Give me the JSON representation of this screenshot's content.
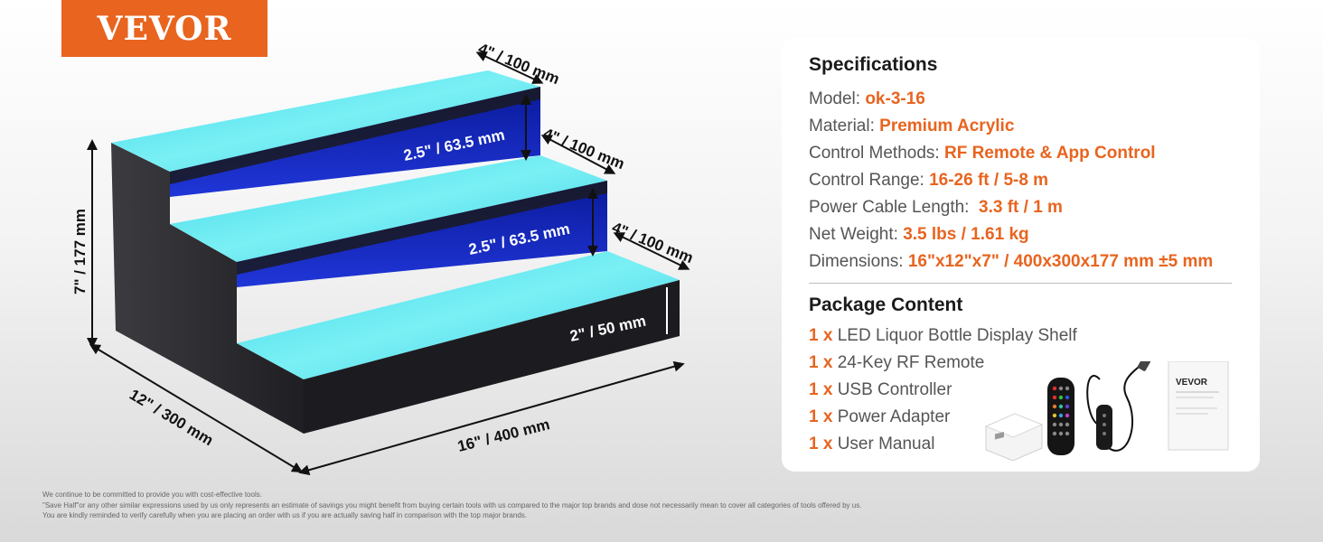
{
  "brand": {
    "logo_text": "VEVOR",
    "color": "#e8641f"
  },
  "dimensions": {
    "step_depth_top": "4\" / 100 mm",
    "step_depth_mid": "4\" / 100 mm",
    "step_depth_bottom": "4\" / 100 mm",
    "rise_top": "2.5\" / 63.5 mm",
    "rise_mid": "2.5\" / 63.5 mm",
    "rise_bottom": "2\" / 50 mm",
    "height": "7\" / 177 mm",
    "depth": "12\" / 300 mm",
    "width": "16\" / 400 mm"
  },
  "specifications": {
    "title": "Specifications",
    "items": [
      {
        "label": "Model: ",
        "value": "ok-3-16"
      },
      {
        "label": "Material: ",
        "value": "Premium Acrylic"
      },
      {
        "label": "Control Methods: ",
        "value": "RF Remote & App Control"
      },
      {
        "label": "Control Range: ",
        "value": "16-26 ft / 5-8 m"
      },
      {
        "label": "Power Cable Length:  ",
        "value": "3.3 ft / 1 m"
      },
      {
        "label": "Net Weight: ",
        "value": "3.5 lbs / 1.61 kg"
      },
      {
        "label": "Dimensions: ",
        "value": "16\"x12\"x7\" / 400x300x177 mm ±5 mm"
      }
    ]
  },
  "package_content": {
    "title": "Package Content",
    "items": [
      {
        "qty": "1 x",
        "name": "LED Liquor Bottle Display Shelf"
      },
      {
        "qty": "1 x",
        "name": "24-Key RF Remote"
      },
      {
        "qty": "1 x",
        "name": "USB Controller"
      },
      {
        "qty": "1 x",
        "name": "Power Adapter"
      },
      {
        "qty": "1 x",
        "name": "User Manual"
      }
    ],
    "manual_brand": "VEVOR"
  },
  "disclaimer": {
    "line1": "We continue to be committed to provide you with cost-effective tools.",
    "line2": "\"Save Half\"or any other similar expressions used by us only represents an estimate of savings you might benefit from buying certain tools with us compared to the major top brands and dose not necessarily mean to cover all categories of tools offered by us.",
    "line3": "You are kindly reminded to verify carefully when you are placing an order with us if you are actually saving half in comparison with the top major brands."
  },
  "colors": {
    "accent": "#e8641f",
    "glow": "#5fe6f0",
    "shelf_body": "#2a2a2e"
  }
}
